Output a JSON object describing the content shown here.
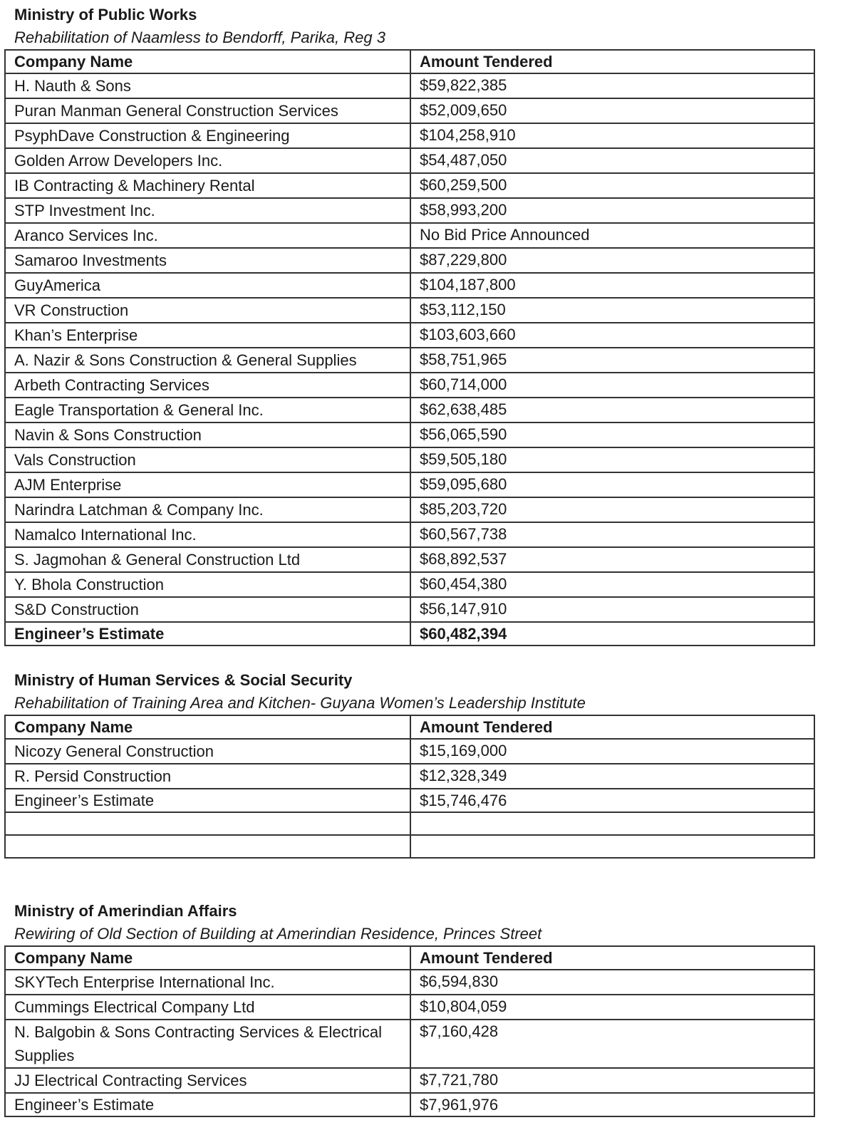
{
  "sections": [
    {
      "ministry": "Ministry of Public Works",
      "project": "Rehabilitation of Naamless to Bendorff, Parika, Reg 3",
      "headers": [
        "Company Name",
        "Amount Tendered"
      ],
      "rows": [
        [
          "H. Nauth & Sons",
          "$59,822,385"
        ],
        [
          "Puran Manman General Construction Services",
          "$52,009,650"
        ],
        [
          "PsyphDave Construction & Engineering",
          "$104,258,910"
        ],
        [
          "Golden Arrow Developers Inc.",
          "$54,487,050"
        ],
        [
          "IB Contracting & Machinery Rental",
          "$60,259,500"
        ],
        [
          "STP Investment Inc.",
          "$58,993,200"
        ],
        [
          "Aranco Services Inc.",
          "No Bid Price Announced"
        ],
        [
          "Samaroo Investments",
          "$87,229,800"
        ],
        [
          "GuyAmerica",
          "$104,187,800"
        ],
        [
          "VR Construction",
          "$53,112,150"
        ],
        [
          "Khan’s Enterprise",
          "$103,603,660"
        ],
        [
          "A. Nazir & Sons Construction & General Supplies",
          "$58,751,965"
        ],
        [
          "Arbeth Contracting Services",
          "$60,714,000"
        ],
        [
          "Eagle Transportation & General Inc.",
          "$62,638,485"
        ],
        [
          "Navin & Sons Construction",
          "$56,065,590"
        ],
        [
          "Vals Construction",
          "$59,505,180"
        ],
        [
          "AJM Enterprise",
          "$59,095,680"
        ],
        [
          "Narindra Latchman & Company Inc.",
          "$85,203,720"
        ],
        [
          "Namalco International Inc.",
          "$60,567,738"
        ],
        [
          "S. Jagmohan & General Construction Ltd",
          "$68,892,537"
        ],
        [
          "Y. Bhola Construction",
          "$60,454,380"
        ],
        [
          "S&D Construction",
          "$56,147,910"
        ]
      ],
      "estimate": [
        "Engineer’s Estimate",
        "$60,482,394"
      ],
      "estimate_bold": true,
      "empty_rows": 0
    },
    {
      "ministry": "Ministry of Human Services & Social Security",
      "project": "Rehabilitation of Training Area and Kitchen- Guyana Women’s Leadership Institute",
      "headers": [
        "Company Name",
        "Amount Tendered"
      ],
      "rows": [
        [
          "Nicozy General Construction",
          "$15,169,000"
        ],
        [
          "R. Persid Construction",
          "$12,328,349"
        ]
      ],
      "estimate": [
        "Engineer’s Estimate",
        "$15,746,476"
      ],
      "estimate_bold": false,
      "empty_rows": 2
    },
    {
      "ministry": "Ministry of Amerindian Affairs",
      "project": "Rewiring of Old Section of Building at Amerindian Residence, Princes Street",
      "headers": [
        "Company Name",
        "Amount Tendered"
      ],
      "rows": [
        [
          "SKYTech Enterprise International Inc.",
          "$6,594,830"
        ],
        [
          "Cummings Electrical Company Ltd",
          "$10,804,059"
        ],
        [
          "N. Balgobin & Sons Contracting Services & Electrical Supplies",
          "$7,160,428"
        ],
        [
          "JJ Electrical Contracting Services",
          "$7,721,780"
        ]
      ],
      "estimate": [
        "Engineer’s Estimate",
        "$7,961,976"
      ],
      "estimate_bold": false,
      "empty_rows": 0
    }
  ]
}
